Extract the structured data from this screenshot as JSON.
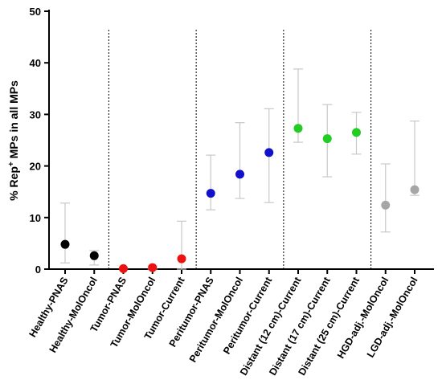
{
  "chart_data": {
    "type": "scatter",
    "title": "",
    "xlabel": "",
    "ylabel": {
      "prefix": "% Rep",
      "superscript": "+",
      "suffix": " MPs in all MPs"
    },
    "ylim": [
      0,
      50
    ],
    "yticks": [
      0,
      10,
      20,
      30,
      40,
      50
    ],
    "grid": false,
    "legend": "none",
    "group_separators_after": [
      1,
      4,
      7,
      10
    ],
    "categories": [
      "Healthy-PNAS",
      "Healthy-MolOncol",
      "Tumor-PNAS",
      "Tumor-MolOncol",
      "Tumor-Current",
      "Peritumor-PNAS",
      "Peritumor-MolOncol",
      "Peritumor-Current",
      "Distant (12 cm)-Current",
      "Distant (17 cm)-Current",
      "Distant (25 cm)-Current",
      "HGD-adj.-MolOncol",
      "LGD-adj.-MolOncol"
    ],
    "values": [
      4.8,
      2.6,
      0.1,
      0.3,
      2.0,
      14.7,
      18.4,
      22.6,
      27.3,
      25.3,
      26.5,
      12.4,
      15.4
    ],
    "error_low": [
      1.2,
      0.8,
      0.0,
      0.0,
      0.0,
      11.5,
      13.7,
      12.9,
      24.6,
      17.9,
      22.3,
      7.2,
      14.3
    ],
    "error_high": [
      12.8,
      3.6,
      0.3,
      0.6,
      9.3,
      22.1,
      28.4,
      31.1,
      38.8,
      31.9,
      30.4,
      20.4,
      28.7
    ],
    "colors": [
      "#000000",
      "#000000",
      "#ee1111",
      "#ee1111",
      "#ee1111",
      "#1111cc",
      "#1111cc",
      "#1111cc",
      "#22cc22",
      "#22cc22",
      "#22cc22",
      "#a6a6a6",
      "#a6a6a6"
    ],
    "error_bar_color": "#c8c8c8"
  }
}
